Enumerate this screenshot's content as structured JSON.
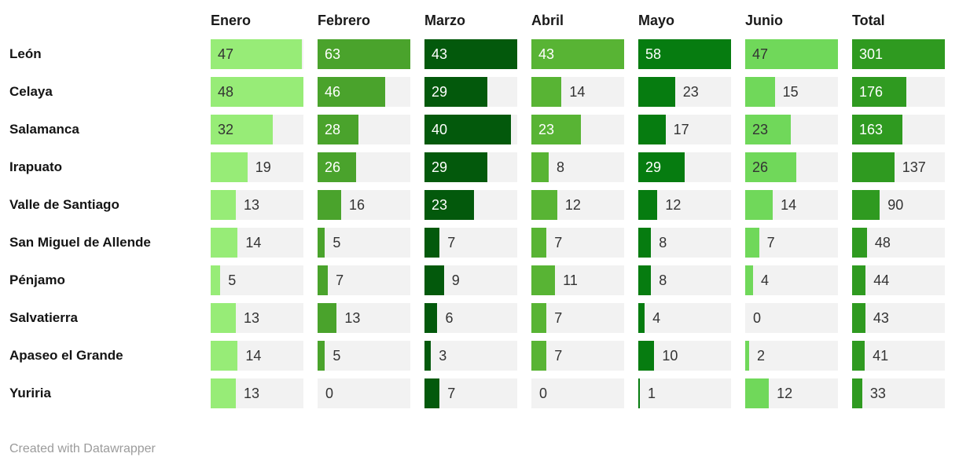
{
  "chart_data": {
    "type": "bar",
    "title": "",
    "layout": {
      "scaling": "per-column-max",
      "legend": false,
      "grid": false,
      "orientation": "horizontal"
    },
    "cell_background": "#f2f2f2",
    "text_out_color": "#333333",
    "columns": [
      {
        "label": "Enero",
        "color": "#97ec77",
        "text_in": "#333333",
        "max": 48
      },
      {
        "label": "Febrero",
        "color": "#4aa32c",
        "text_in": "#ffffff",
        "max": 63
      },
      {
        "label": "Marzo",
        "color": "#03590c",
        "text_in": "#ffffff",
        "max": 43
      },
      {
        "label": "Abril",
        "color": "#58b434",
        "text_in": "#ffffff",
        "max": 43
      },
      {
        "label": "Mayo",
        "color": "#067c10",
        "text_in": "#ffffff",
        "max": 58
      },
      {
        "label": "Junio",
        "color": "#70d85a",
        "text_in": "#333333",
        "max": 47
      },
      {
        "label": "Total",
        "color": "#2f9a20",
        "text_in": "#ffffff",
        "max": 301
      }
    ],
    "rows": [
      {
        "name": "León",
        "values": [
          47,
          63,
          43,
          43,
          58,
          47,
          301
        ],
        "label_inside": [
          true,
          true,
          true,
          true,
          true,
          true,
          true
        ]
      },
      {
        "name": "Celaya",
        "values": [
          48,
          46,
          29,
          14,
          23,
          15,
          176
        ],
        "label_inside": [
          true,
          true,
          true,
          false,
          false,
          false,
          true
        ]
      },
      {
        "name": "Salamanca",
        "values": [
          32,
          28,
          40,
          23,
          17,
          23,
          163
        ],
        "label_inside": [
          true,
          true,
          true,
          true,
          false,
          true,
          true
        ]
      },
      {
        "name": "Irapuato",
        "values": [
          19,
          26,
          29,
          8,
          29,
          26,
          137
        ],
        "label_inside": [
          false,
          true,
          true,
          false,
          true,
          true,
          false
        ]
      },
      {
        "name": "Valle de Santiago",
        "values": [
          13,
          16,
          23,
          12,
          12,
          14,
          90
        ],
        "label_inside": [
          false,
          false,
          true,
          false,
          false,
          false,
          false
        ]
      },
      {
        "name": "San Miguel de Allende",
        "values": [
          14,
          5,
          7,
          7,
          8,
          7,
          48
        ],
        "label_inside": [
          false,
          false,
          false,
          false,
          false,
          false,
          false
        ]
      },
      {
        "name": "Pénjamo",
        "values": [
          5,
          7,
          9,
          11,
          8,
          4,
          44
        ],
        "label_inside": [
          false,
          false,
          false,
          false,
          false,
          false,
          false
        ]
      },
      {
        "name": "Salvatierra",
        "values": [
          13,
          13,
          6,
          7,
          4,
          0,
          43
        ],
        "label_inside": [
          false,
          false,
          false,
          false,
          false,
          false,
          false
        ]
      },
      {
        "name": "Apaseo el Grande",
        "values": [
          14,
          5,
          3,
          7,
          10,
          2,
          41
        ],
        "label_inside": [
          false,
          false,
          false,
          false,
          false,
          false,
          false
        ]
      },
      {
        "name": "Yuriria",
        "values": [
          13,
          0,
          7,
          0,
          1,
          12,
          33
        ],
        "label_inside": [
          false,
          false,
          false,
          false,
          false,
          false,
          false
        ]
      }
    ]
  },
  "footer": {
    "credit": "Created with Datawrapper"
  }
}
